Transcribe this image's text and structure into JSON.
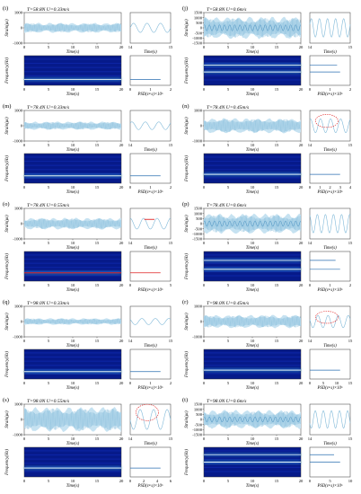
{
  "colors": {
    "signal": "#7fb8d8",
    "signal_light": "#c6e2f1",
    "signal_dark": "#2f7fb6",
    "spec_bg": "#061a8a",
    "spec_ridge": "#e4f2f4",
    "marker": "#e02020"
  },
  "chart_data": [
    {
      "type": "line",
      "panel": "(i)",
      "title": "T=58.8N U=0.33m/s",
      "xlabel": "Time(s)",
      "ylabel": "Strain(με)",
      "xlim": [
        0,
        20
      ],
      "ylim": [
        -1000,
        1000
      ],
      "xticks": [
        "0",
        "5",
        "10",
        "15",
        "20"
      ],
      "yticks": [
        "1000",
        "0",
        "-1000"
      ],
      "x": [
        0,
        20
      ],
      "amplitude": 300,
      "zoom": {
        "xticks": [
          "14",
          "15"
        ],
        "amplitude": 300,
        "cycles": 3
      },
      "spectrum": {
        "ylabel": "Frequency(Hz)",
        "psd_label": "PSD(ε²·s)×10⁵",
        "psd_ticks": [
          "0",
          "1",
          "2"
        ],
        "bands": [
          {
            "f": 0.2,
            "strength": 1
          }
        ]
      }
    },
    {
      "type": "line",
      "panel": "(j)",
      "title": "T=58.8N U=0.6m/s",
      "xlabel": "Time(s)",
      "ylabel": "Strain(με)",
      "xlim": [
        0,
        20
      ],
      "ylim": [
        -1500,
        1500
      ],
      "yticks": [
        "1500",
        "1000",
        "500",
        "0",
        "-500",
        "-1000",
        "-1500"
      ],
      "xticks": [
        "0",
        "5",
        "10",
        "15",
        "20"
      ],
      "x": [
        0,
        20
      ],
      "amplitude": 1000,
      "zoom": {
        "xticks": [
          "14",
          "15"
        ],
        "amplitude": 900,
        "cycles": 5
      },
      "spectrum": {
        "ylabel": "Frequency(Hz)",
        "psd_label": "PSD(ε²·s)×10⁶",
        "psd_ticks": [
          "0",
          "1",
          "2"
        ],
        "bands": [
          {
            "f": 0.45,
            "strength": 1
          },
          {
            "f": 0.68,
            "strength": 0.9
          }
        ]
      }
    },
    {
      "type": "line",
      "panel": "(m)",
      "title": "T=78.4N U=0.33m/s",
      "xlabel": "Time(s)",
      "ylabel": "Strain(με)",
      "xlim": [
        0,
        20
      ],
      "ylim": [
        -1000,
        1000
      ],
      "xticks": [
        "0",
        "5",
        "10",
        "15",
        "20"
      ],
      "yticks": [
        "1000",
        "0",
        "-1000"
      ],
      "x": [
        0,
        20
      ],
      "amplitude": 250,
      "zoom": {
        "xticks": [
          "14",
          "15"
        ],
        "amplitude": 250,
        "cycles": 3
      },
      "spectrum": {
        "ylabel": "Frequency(Hz)",
        "psd_label": "PSD(ε²·s)×10⁵",
        "psd_ticks": [
          "0",
          "1",
          "2"
        ],
        "bands": [
          {
            "f": 0.25,
            "strength": 1
          }
        ]
      }
    },
    {
      "type": "line",
      "panel": "(n)",
      "title": "T=78.4N U=0.45m/s",
      "xlabel": "Time(s)",
      "ylabel": "Strain(με)",
      "xlim": [
        0,
        20
      ],
      "ylim": [
        -1000,
        1000
      ],
      "xticks": [
        "0",
        "5",
        "10",
        "15",
        "20"
      ],
      "yticks": [
        "1000",
        "0",
        "-1000"
      ],
      "x": [
        0,
        20
      ],
      "amplitude": 450,
      "zoom": {
        "xticks": [
          "14",
          "15"
        ],
        "amplitude": 450,
        "cycles": 4,
        "ellipse": true
      },
      "spectrum": {
        "ylabel": "Frequency(Hz)",
        "psd_label": "PSD(ε²·s)×10⁶",
        "psd_ticks": [
          "0",
          "1",
          "2",
          "3",
          "4"
        ],
        "bands": [
          {
            "f": 0.3,
            "strength": 1
          }
        ]
      }
    },
    {
      "type": "line",
      "panel": "(o)",
      "title": "T=78.4N U=0.55m/s",
      "xlabel": "Time(s)",
      "ylabel": "Strain(με)",
      "xlim": [
        0,
        20
      ],
      "ylim": [
        -1000,
        1000
      ],
      "xticks": [
        "0",
        "5",
        "10",
        "15",
        "20"
      ],
      "yticks": [
        "1000",
        "0",
        "-1000"
      ],
      "x": [
        0,
        20
      ],
      "amplitude": 350,
      "zoom": {
        "xticks": [
          "14",
          "15"
        ],
        "amplitude": 350,
        "cycles": 3,
        "redline": true
      },
      "spectrum": {
        "ylabel": "Frequency(Hz)",
        "psd_label": "PSD(ε²·s)×10⁵",
        "psd_ticks": [
          "0",
          "5"
        ],
        "bands": [
          {
            "f": 0.28,
            "strength": 1,
            "red": true
          }
        ]
      }
    },
    {
      "type": "line",
      "panel": "(p)",
      "title": "T=78.4N U=0.6m/s",
      "xlabel": "Time(s)",
      "ylabel": "Strain(με)",
      "xlim": [
        0,
        20
      ],
      "ylim": [
        -1500,
        1500
      ],
      "yticks": [
        "1500",
        "1000",
        "500",
        "0",
        "-500",
        "-1000",
        "-1500"
      ],
      "xticks": [
        "0",
        "5",
        "10",
        "15",
        "20"
      ],
      "x": [
        0,
        20
      ],
      "amplitude": 900,
      "zoom": {
        "xticks": [
          "14",
          "15"
        ],
        "amplitude": 900,
        "cycles": 5
      },
      "spectrum": {
        "ylabel": "Frequency(Hz)",
        "psd_label": "PSD(ε²·s)×10⁶",
        "psd_ticks": [
          "0",
          "1",
          "2"
        ],
        "bands": [
          {
            "f": 0.4,
            "strength": 1
          },
          {
            "f": 0.7,
            "strength": 0.85
          }
        ]
      }
    },
    {
      "type": "line",
      "panel": "(q)",
      "title": "T=98.0N U=0.33m/s",
      "xlabel": "Time(s)",
      "ylabel": "Strain(με)",
      "xlim": [
        0,
        20
      ],
      "ylim": [
        -1000,
        1000
      ],
      "xticks": [
        "0",
        "5",
        "10",
        "15",
        "20"
      ],
      "yticks": [
        "1000",
        "0",
        "-1000"
      ],
      "x": [
        0,
        20
      ],
      "amplitude": 200,
      "zoom": {
        "xticks": [
          "14",
          "15"
        ],
        "amplitude": 200,
        "cycles": 3
      },
      "spectrum": {
        "ylabel": "Frequency(Hz)",
        "psd_label": "PSD(ε²·s)×10⁵",
        "psd_ticks": [
          "0",
          "1",
          "2"
        ],
        "bands": [
          {
            "f": 0.25,
            "strength": 1
          }
        ]
      }
    },
    {
      "type": "line",
      "panel": "(r)",
      "title": "T=98.0N U=0.45m/s",
      "xlabel": "Time(s)",
      "ylabel": "Strain(με)",
      "xlim": [
        0,
        20
      ],
      "ylim": [
        -1000,
        1000
      ],
      "xticks": [
        "0",
        "5",
        "10",
        "15",
        "20"
      ],
      "yticks": [
        "1000",
        "0",
        "-1000"
      ],
      "x": [
        0,
        20
      ],
      "amplitude": 400,
      "zoom": {
        "xticks": [
          "14",
          "15"
        ],
        "amplitude": 400,
        "cycles": 4,
        "ellipse": true
      },
      "spectrum": {
        "ylabel": "Frequency(Hz)",
        "psd_label": "PSD(ε²·s)×10⁵",
        "psd_ticks": [
          "0",
          "5",
          "10",
          "15"
        ],
        "bands": [
          {
            "f": 0.3,
            "strength": 1
          }
        ]
      }
    },
    {
      "type": "line",
      "panel": "(s)",
      "title": "T=98.0N U=0.55m/s",
      "xlabel": "Time(s)",
      "ylabel": "Strain(με)",
      "xlim": [
        0,
        20
      ],
      "ylim": [
        -1000,
        1000
      ],
      "xticks": [
        "0",
        "5",
        "10",
        "15",
        "20"
      ],
      "yticks": [
        "1000",
        "0",
        "-1000"
      ],
      "x": [
        0,
        20
      ],
      "amplitude": 750,
      "zoom": {
        "xticks": [
          "14",
          "15"
        ],
        "amplitude": 650,
        "cycles": 3,
        "ellipse": true
      },
      "spectrum": {
        "ylabel": "Frequency(Hz)",
        "psd_label": "PSD(ε²·s)×10⁵",
        "psd_ticks": [
          "0",
          "2",
          "4",
          "6"
        ],
        "bands": [
          {
            "f": 0.3,
            "strength": 1
          }
        ]
      }
    },
    {
      "type": "line",
      "panel": "(t)",
      "title": "T=98.0N U=0.6m/s",
      "xlabel": "Time(s)",
      "ylabel": "Strain(με)",
      "xlim": [
        0,
        20
      ],
      "ylim": [
        -1500,
        1500
      ],
      "yticks": [
        "1500",
        "1000",
        "500",
        "0",
        "-500",
        "-1000",
        "-1500"
      ],
      "xticks": [
        "0",
        "5",
        "10",
        "15",
        "20"
      ],
      "x": [
        0,
        20
      ],
      "amplitude": 850,
      "zoom": {
        "xticks": [
          "14",
          "15"
        ],
        "amplitude": 850,
        "cycles": 5
      },
      "spectrum": {
        "ylabel": "Frequency(Hz)",
        "psd_label": "PSD(ε²·s)×10⁶",
        "psd_ticks": [
          "0",
          "5",
          "10"
        ],
        "bands": [
          {
            "f": 0.5,
            "strength": 1
          },
          {
            "f": 0.75,
            "strength": 0.8
          }
        ]
      }
    }
  ]
}
